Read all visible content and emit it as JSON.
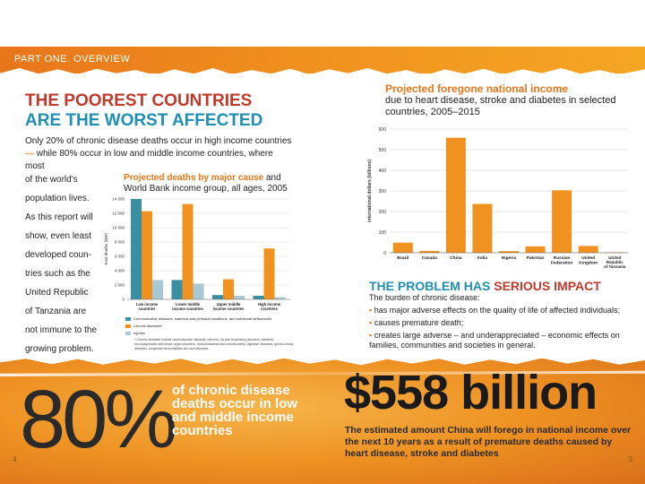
{
  "header": {
    "section_label": "PART ONE. OVERVIEW"
  },
  "left": {
    "headline_line1": "THE POOREST COUNTRIES",
    "headline_line2": "ARE THE WORST AFFECTED",
    "intro_line1": "Only 20% of chronic disease deaths occur in high income countries",
    "intro_dash": "—",
    "intro_line2": " while 80% occur in low and middle income countries, where most",
    "narrow_lines": [
      "of the world's",
      "population lives.",
      "As this report will",
      "show, even least",
      "developed coun-",
      "tries such as the",
      "United Republic",
      "of Tanzania are",
      "not immune to the",
      "growing problem."
    ]
  },
  "deaths_chart": {
    "title_highlight": "Projected deaths by major cause",
    "title_rest": " and World Bank income group, all ages, 2005",
    "legend": [
      "Communicable diseases, maternal and perinatal conditions, and nutritional deficiencies",
      "Chronic diseases*",
      "Injuries"
    ],
    "footnote": "* Chronic diseases include cardiovascular diseases, cancers, chronic respiratory disorders, diabetes, neuropsychiatric and sense organ disorders, musculoskeletal and oral disorders, digestive diseases, genito-urinary diseases, congenital abnormalities and skin diseases."
  },
  "income_chart": {
    "title_highlight": "Projected foregone national income",
    "title_rest": "due to heart disease, stroke and diabetes in selected countries, 2005–2015"
  },
  "impact": {
    "title_blue": "THE PROBLEM HAS ",
    "title_red": "SERIOUS IMPACT",
    "lead": "The burden of chronic disease:",
    "bullets": [
      "has major adverse effects on the quality of life of affected individuals;",
      "causes premature death;",
      "creates large adverse – and underappreciated – economic effects on families, communities and societies in general."
    ],
    "bullet_mark": "▪"
  },
  "bottom": {
    "big_percent": "80%",
    "percent_text": "of chronic disease deaths occur in low and middle income countries",
    "big_amount": "$558 billion",
    "amount_text": "The estimated amount China will forego in national income over the next 10 years as a result of premature deaths caused by heart disease, stroke and diabetes",
    "page_left": "4",
    "page_right": "5"
  },
  "colors": {
    "orange": "#f0921f",
    "teal": "#3a8fa3",
    "light_blue": "#a9c8d6",
    "red": "#c0392b",
    "blue": "#1f8fb3"
  },
  "chart_data": [
    {
      "type": "bar",
      "title": "Projected deaths by major cause and World Bank income group, all ages, 2005",
      "ylabel": "Total deaths (000)",
      "ylim": [
        0,
        14000
      ],
      "yticks": [
        "0",
        "2 000",
        "4 000",
        "6 000",
        "8 000",
        "10 000",
        "12 000",
        "14 000"
      ],
      "categories": [
        "Low income countries",
        "Lower middle income countries",
        "Upper middle income countries",
        "High income countries"
      ],
      "series": [
        {
          "name": "Communicable diseases, maternal and perinatal conditions, and nutritional deficiencies",
          "values": [
            14000,
            2700,
            600,
            500
          ]
        },
        {
          "name": "Chronic diseases*",
          "values": [
            12300,
            13300,
            2800,
            7100
          ]
        },
        {
          "name": "Injuries",
          "values": [
            2700,
            2200,
            500,
            300
          ]
        }
      ],
      "legend": "bottom"
    },
    {
      "type": "bar",
      "title": "Projected foregone national income due to heart disease, stroke and diabetes in selected countries, 2005–2015",
      "ylabel": "international dollars (billions)",
      "ylim": [
        0,
        600
      ],
      "yticks": [
        "0",
        "100",
        "200",
        "300",
        "400",
        "500",
        "600"
      ],
      "categories": [
        "Brazil",
        "Canada",
        "China",
        "India",
        "Nigeria",
        "Pakistan",
        "Russian Federation",
        "United Kingdom",
        "United Republic of Tanzania"
      ],
      "values": [
        49,
        9,
        558,
        237,
        8,
        31,
        303,
        33,
        2
      ],
      "grid": true
    }
  ]
}
